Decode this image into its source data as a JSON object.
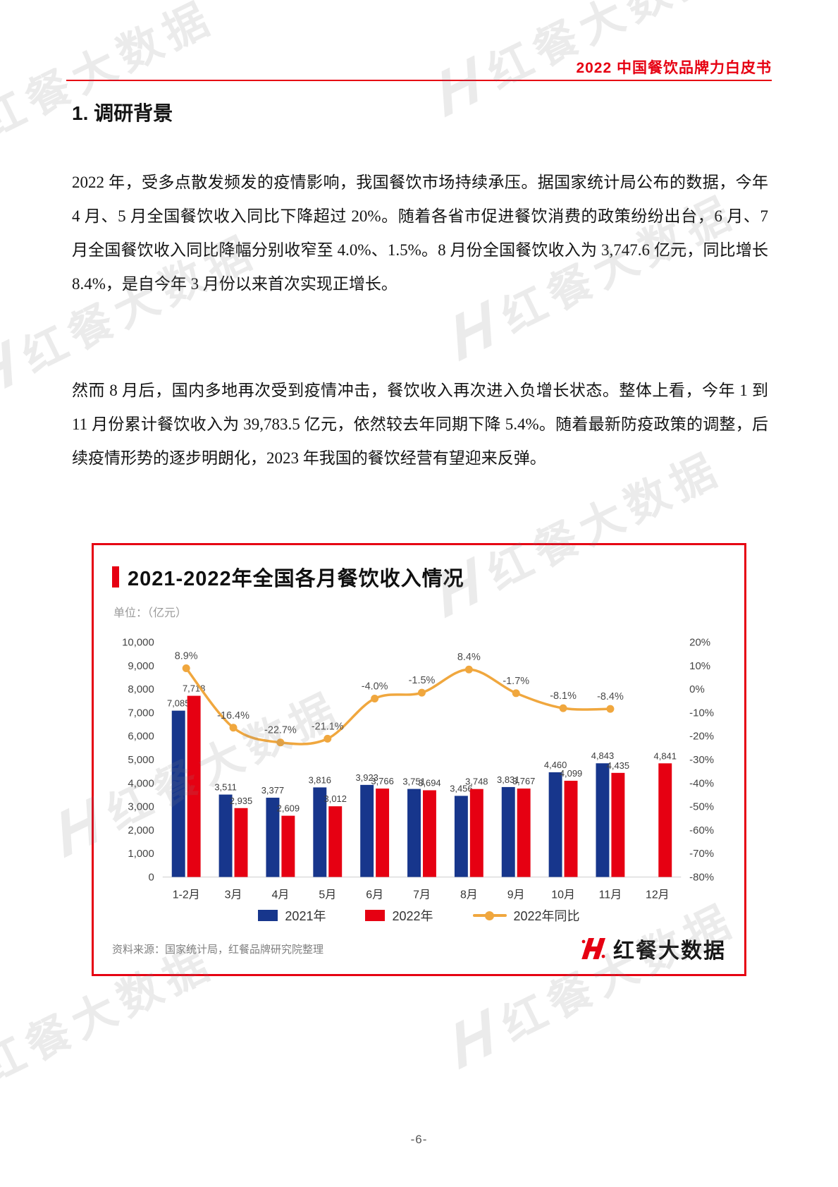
{
  "page": {
    "header_title": "2022 中国餐饮品牌力白皮书",
    "section_title": "1. 调研背景",
    "paragraphs": [
      "2022 年，受多点散发频发的疫情影响，我国餐饮市场持续承压。据国家统计局公布的数据，今年 4 月、5 月全国餐饮收入同比下降超过 20%。随着各省市促进餐饮消费的政策纷纷出台，6 月、7 月全国餐饮收入同比降幅分别收窄至 4.0%、1.5%。8 月份全国餐饮收入为 3,747.6 亿元，同比增长 8.4%，是自今年 3 月份以来首次实现正增长。",
      "然而 8 月后，国内多地再次受到疫情冲击，餐饮收入再次进入负增长状态。整体上看，今年 1 到 11 月份累计餐饮收入为 39,783.5 亿元，依然较去年同期下降 5.4%。随着最新防疫政策的调整，后续疫情形势的逐步明朗化，2023 年我国的餐饮经营有望迎来反弹。"
    ],
    "page_number": "-6-",
    "watermark_icon": "H",
    "watermark_text": "红餐大数据"
  },
  "chart": {
    "title": "2021-2022年全国各月餐饮收入情况",
    "unit_label": "单位：（亿元）",
    "source": "资料来源：国家统计局，红餐品牌研究院整理",
    "logo_text": "红餐大数据"
  },
  "colors": {
    "accent_red": "#e60012",
    "bar_2021_blue": "#17368c",
    "bar_2022_red": "#e60012",
    "line_orange": "#f0a73e"
  },
  "chart_data": {
    "type": "bar+line",
    "title": "2021-2022年全国各月餐饮收入情况",
    "unit": "单位：（亿元）",
    "categories": [
      "1-2月",
      "3月",
      "4月",
      "5月",
      "6月",
      "7月",
      "8月",
      "9月",
      "10月",
      "11月",
      "12月"
    ],
    "series": [
      {
        "name": "2021年",
        "type": "bar",
        "axis": "left",
        "color": "#17368c",
        "values": [
          7085,
          3511,
          3377,
          3816,
          3923,
          3751,
          3456,
          3831,
          4460,
          4843,
          null
        ]
      },
      {
        "name": "2022年",
        "type": "bar",
        "axis": "left",
        "color": "#e60012",
        "values": [
          7718,
          2935,
          2609,
          3012,
          3766,
          3694,
          3748,
          3767,
          4099,
          4435,
          4841
        ]
      },
      {
        "name": "2022年同比",
        "type": "line",
        "axis": "right",
        "color": "#f0a73e",
        "values": [
          8.9,
          -16.4,
          -22.7,
          -21.1,
          -4.0,
          -1.5,
          8.4,
          -1.7,
          -8.1,
          -8.4,
          null
        ]
      }
    ],
    "left_axis": {
      "min": 0,
      "max": 10000,
      "step": 1000
    },
    "right_axis": {
      "min": -80,
      "max": 20,
      "step": 10,
      "suffix": "%"
    },
    "legend_position": "bottom",
    "grid": false
  }
}
